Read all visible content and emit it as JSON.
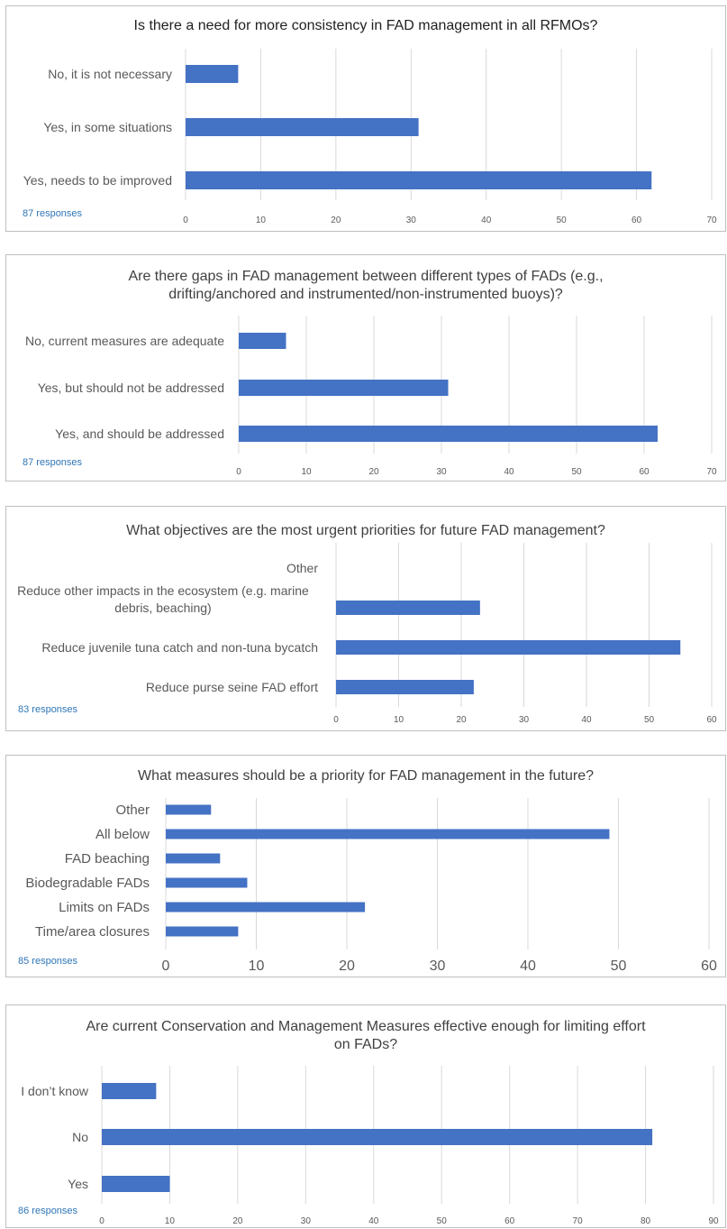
{
  "colors": {
    "bar": "#4472c4",
    "grid": "#d9d9d9",
    "text": "#595959",
    "responses": "#2e75b6"
  },
  "chart_data": [
    {
      "type": "bar",
      "orientation": "horizontal",
      "title": "Is there a need for more consistency in FAD management in all RFMOs?",
      "categories": [
        "No, it is not necessary",
        "Yes, in some situations",
        "Yes, needs to be improved"
      ],
      "values": [
        7,
        31,
        62
      ],
      "xlim": [
        0,
        70
      ],
      "ticks": [
        0,
        10,
        20,
        30,
        40,
        50,
        60,
        70
      ],
      "grid": true,
      "responses": "87 responses"
    },
    {
      "type": "bar",
      "orientation": "horizontal",
      "title": "Are there gaps in FAD management between different types of FADs (e.g., drifting/anchored and instrumented/non-instrumented  buoys)?",
      "categories": [
        "No, current measures are adequate",
        "Yes, but should not be addressed",
        "Yes, and should be addressed"
      ],
      "values": [
        7,
        31,
        62
      ],
      "xlim": [
        0,
        70
      ],
      "ticks": [
        0,
        10,
        20,
        30,
        40,
        50,
        60,
        70
      ],
      "grid": true,
      "responses": "87 responses"
    },
    {
      "type": "bar",
      "orientation": "horizontal",
      "title": "What objectives are the most urgent priorities for future FAD management?",
      "categories": [
        "Other",
        "Reduce other impacts in the ecosystem (e.g. marine debris, beaching)",
        "Reduce juvenile tuna catch and non-tuna bycatch",
        "Reduce purse seine FAD effort"
      ],
      "values": [
        0,
        23,
        55,
        22
      ],
      "xlim": [
        0,
        60
      ],
      "ticks": [
        0,
        10,
        20,
        30,
        40,
        50,
        60
      ],
      "grid": true,
      "responses": "83 responses"
    },
    {
      "type": "bar",
      "orientation": "horizontal",
      "title": "What measures should be a priority for FAD management in the future?",
      "categories": [
        "Other",
        "All below",
        "FAD beaching",
        "Biodegradable FADs",
        "Limits on FADs",
        "Time/area closures"
      ],
      "values": [
        5,
        49,
        6,
        9,
        22,
        8
      ],
      "xlim": [
        0,
        60
      ],
      "ticks": [
        0,
        10,
        20,
        30,
        40,
        50,
        60
      ],
      "grid": true,
      "responses": "85 responses"
    },
    {
      "type": "bar",
      "orientation": "horizontal",
      "title": "Are current Conservation and Management Measures effective enough for limiting effort on FADs?",
      "categories": [
        "I don’t know",
        "No",
        "Yes"
      ],
      "values": [
        8,
        81,
        10
      ],
      "xlim": [
        0,
        90
      ],
      "ticks": [
        0,
        10,
        20,
        30,
        40,
        50,
        60,
        70,
        80,
        90
      ],
      "grid": true,
      "responses": "86 responses"
    }
  ]
}
